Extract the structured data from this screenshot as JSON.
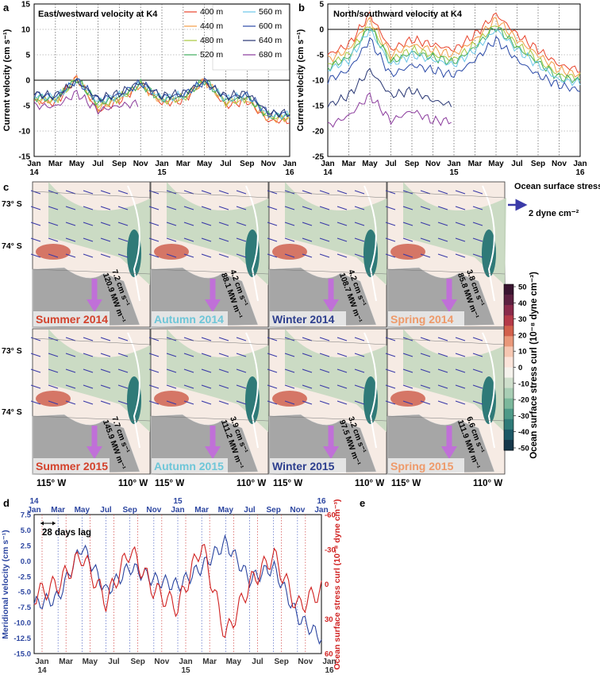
{
  "panels": {
    "a": {
      "letter": "a",
      "title": "East/westward velocity at K4",
      "ylabel": "Current velocity (cm s⁻¹)",
      "ylim": [
        -15,
        15
      ],
      "yticks": [
        "-15",
        "-10",
        "-5",
        "0",
        "5",
        "10",
        "15"
      ],
      "xticks": [
        "Jan",
        "Mar",
        "May",
        "Jul",
        "Sep",
        "Nov",
        "Jan",
        "Mar",
        "May",
        "Jul",
        "Sep",
        "Nov",
        "Jan"
      ],
      "years": [
        "14",
        "15",
        "16"
      ]
    },
    "b": {
      "letter": "b",
      "title": "North/southward velocity at K4",
      "ylabel": "Current velocity (cm s⁻¹)",
      "ylim": [
        -25,
        5
      ],
      "yticks": [
        "-25",
        "-20",
        "-15",
        "-10",
        "-5",
        "0",
        "5"
      ],
      "xticks": [
        "Jan",
        "Mar",
        "May",
        "Jul",
        "Sep",
        "Nov",
        "Jan",
        "Mar",
        "May",
        "Jul",
        "Sep",
        "Nov",
        "Jan"
      ],
      "years": [
        "14",
        "15",
        "16"
      ]
    },
    "c": {
      "letter": "c",
      "legend_title": "Ocean surface stress",
      "legend_scale": "2  dyne cm⁻²",
      "lat_labels": [
        "73° S",
        "74° S"
      ],
      "lon_labels": [
        "115° W",
        "110° W"
      ],
      "colorbar_label": "Ocean surface stress curl (10⁻⁸ dyne cm⁻³)",
      "colorbar_ticks": [
        "50",
        "40",
        "30",
        "20",
        "10",
        "0",
        "-10",
        "-20",
        "-30",
        "-40",
        "-50"
      ],
      "colorbar_colors": [
        "#3a1530",
        "#5c2040",
        "#8a2a4a",
        "#b53a48",
        "#d2604c",
        "#e9987a",
        "#f6c7b2",
        "#fbe4da",
        "#f5f2ec",
        "#cfdfcc",
        "#a9ceb5",
        "#7cb89c",
        "#4e9a88",
        "#2f7a78",
        "#1d5866",
        "#16374a"
      ],
      "maps": [
        {
          "season": "Summer 2014",
          "speed": "7.2 cm s⁻¹",
          "power": "120.9 MW m⁻¹",
          "color": "#d3412b"
        },
        {
          "season": "Autumn 2014",
          "speed": "4.2 cm s⁻¹",
          "power": "88.1 MW m⁻¹",
          "color": "#6ec6d8"
        },
        {
          "season": "Winter 2014",
          "speed": "4.2 cm s⁻¹",
          "power": "108.7 MW m⁻¹",
          "color": "#2d3f8e"
        },
        {
          "season": "Spring 2014",
          "speed": "3.8 cm s⁻¹",
          "power": "85.8 MW m⁻¹",
          "color": "#ee9a6a"
        },
        {
          "season": "Summer 2015",
          "speed": "7.7 cm s⁻¹",
          "power": "145.9 MW m⁻¹",
          "color": "#d3412b"
        },
        {
          "season": "Autumn 2015",
          "speed": "3.9 cm s⁻¹",
          "power": "111.2 MW m⁻¹",
          "color": "#6ec6d8"
        },
        {
          "season": "Winter 2015",
          "speed": "3.2 cm s⁻¹",
          "power": "97.5 MW m⁻¹",
          "color": "#2d3f8e"
        },
        {
          "season": "Spring 2015",
          "speed": "6.6 cm s⁻¹",
          "power": "111.9 MW m⁻¹",
          "color": "#ee9a6a"
        }
      ]
    },
    "d": {
      "letter": "d",
      "annotation": "28 days lag",
      "ylabel_left": "Meridional velocity (cm s⁻¹)",
      "ylabel_right": "Ocean surface stress curl (10⁻⁸ dyne cm⁻³)",
      "left_yticks": [
        "7.5",
        "5.0",
        "2.5",
        "0.0",
        "-2.5",
        "-5.0",
        "-7.5",
        "-10.0",
        "-12.5",
        "-15.0"
      ],
      "right_yticks": [
        "-60",
        "-30",
        "0",
        "30",
        "60"
      ],
      "xticks": [
        "Jan",
        "Mar",
        "May",
        "Jul",
        "Sep",
        "Nov",
        "Jan",
        "Mar",
        "May",
        "Jul",
        "Sep",
        "Nov",
        "Jan"
      ],
      "years": [
        "14",
        "15",
        "16"
      ],
      "left_color": "#2b45a0",
      "right_color": "#d0201f"
    },
    "e": {
      "letter": "e"
    }
  },
  "chart_data": [
    {
      "type": "line",
      "title": "East/westward velocity at K4",
      "ylabel": "Current velocity (cm s⁻¹)",
      "ylim": [
        -15,
        15
      ],
      "x_range": [
        "2014-01",
        "2016-01"
      ],
      "x": [
        "Jan 14",
        "Mar 14",
        "May 14",
        "Jul 14",
        "Sep 14",
        "Nov 14",
        "Jan 15",
        "Mar 15",
        "May 15",
        "Jul 15",
        "Sep 15",
        "Nov 15",
        "Jan 16"
      ],
      "grid": true,
      "legend": "top-right",
      "series": [
        {
          "name": "400 m",
          "color": "#e8442c",
          "values": [
            -4,
            -4.5,
            0.5,
            -6,
            -4,
            -1,
            -4.5,
            -4,
            0,
            -5,
            -4,
            -8,
            -8
          ]
        },
        {
          "name": "440 m",
          "color": "#f39c46",
          "values": [
            -3.8,
            -4.2,
            0.4,
            -5.5,
            -3.8,
            -0.9,
            -4.2,
            -3.8,
            0,
            -4.6,
            -3.8,
            -7.5,
            -7.6
          ]
        },
        {
          "name": "480 m",
          "color": "#a8c83c",
          "values": [
            -3.5,
            -4,
            0.3,
            -5,
            -3.5,
            -0.8,
            -4,
            -3.5,
            0,
            -4.3,
            -3.5,
            -7.2,
            -7.3
          ]
        },
        {
          "name": "520 m",
          "color": "#3fae5c",
          "values": [
            -3.3,
            -3.8,
            0.2,
            -4.6,
            -3.3,
            -0.7,
            -3.8,
            -3.3,
            0,
            -4,
            -3.3,
            -7,
            -7.1
          ]
        },
        {
          "name": "560 m",
          "color": "#6cc6e8",
          "values": [
            -3,
            -3.5,
            0.1,
            -4.2,
            -3,
            -0.6,
            -3.5,
            -3,
            -0.1,
            -3.7,
            -3,
            -6.8,
            -6.9
          ]
        },
        {
          "name": "600 m",
          "color": "#2b4aa8",
          "values": [
            -2.8,
            -3.3,
            0,
            -3.9,
            -2.8,
            -0.5,
            -3.3,
            -2.8,
            -0.2,
            -3.4,
            -2.8,
            -6.6,
            -6.7
          ]
        },
        {
          "name": "640 m",
          "color": "#283673",
          "values": [
            -2.6,
            -3.1,
            -0.1,
            -3.6,
            -2.6,
            -0.4,
            -3.1,
            -2.6,
            -0.3,
            -3.2,
            -2.6,
            -6.4,
            -6.5
          ]
        },
        {
          "name": "680 m",
          "color": "#8a3a9c",
          "values": [
            -5,
            -5.2,
            -2.5,
            -6,
            -5,
            -4.5,
            null,
            null,
            null,
            null,
            null,
            null,
            null
          ]
        }
      ]
    },
    {
      "type": "line",
      "title": "North/southward velocity at K4",
      "ylabel": "Current velocity (cm s⁻¹)",
      "ylim": [
        -25,
        5
      ],
      "x_range": [
        "2014-01",
        "2016-01"
      ],
      "x": [
        "Jan 14",
        "Mar 14",
        "May 14",
        "Jul 14",
        "Sep 14",
        "Nov 14",
        "Jan 15",
        "Mar 15",
        "May 15",
        "Jul 15",
        "Sep 15",
        "Nov 15",
        "Jan 16"
      ],
      "grid": true,
      "series": [
        {
          "name": "400 m",
          "color": "#e8442c",
          "values": [
            -5,
            -3,
            3,
            -4,
            -2,
            -3,
            -4,
            -1,
            3,
            -1,
            -4,
            -7,
            -8
          ]
        },
        {
          "name": "440 m",
          "color": "#f39c46",
          "values": [
            -6,
            -4,
            2,
            -5,
            -3,
            -4,
            -5,
            -2,
            2,
            -2,
            -5,
            -8,
            -9
          ]
        },
        {
          "name": "480 m",
          "color": "#a8c83c",
          "values": [
            -7,
            -5,
            1,
            -6,
            -4,
            -5,
            -6,
            -3,
            1,
            -3,
            -6,
            -9,
            -9.5
          ]
        },
        {
          "name": "520 m",
          "color": "#3fae5c",
          "values": [
            -7.5,
            -5.5,
            0.5,
            -6.5,
            -4.5,
            -5.5,
            -6.5,
            -3.5,
            0.5,
            -3.5,
            -6.5,
            -9.5,
            -10
          ]
        },
        {
          "name": "560 m",
          "color": "#6cc6e8",
          "values": [
            -8,
            -6,
            0,
            -7,
            -5,
            -6,
            -7,
            -4,
            0,
            -4,
            -7,
            -10,
            -10.5
          ]
        },
        {
          "name": "600 m",
          "color": "#2b4aa8",
          "values": [
            -10,
            -8,
            -2,
            -9,
            -7,
            -8,
            -9,
            -6,
            -2,
            -6,
            -9,
            -11,
            -12
          ]
        },
        {
          "name": "640 m",
          "color": "#283673",
          "values": [
            -15,
            -13,
            -8,
            -13,
            -12,
            -14,
            -15,
            null,
            null,
            null,
            null,
            null,
            null
          ]
        },
        {
          "name": "680 m",
          "color": "#8a3a9c",
          "values": [
            -19,
            -17,
            -13,
            -18,
            -16,
            -18,
            -18,
            null,
            null,
            null,
            null,
            null,
            null
          ]
        }
      ]
    },
    {
      "type": "line",
      "ylabel": "Meridional velocity (cm s⁻¹)",
      "ylabel_right": "Ocean surface stress curl (10⁻⁸ dyne cm⁻³)",
      "ylim": [
        -15,
        7.5
      ],
      "ylim_right": [
        60,
        -60
      ],
      "x": [
        "Jan 14",
        "Mar 14",
        "May 14",
        "Jul 14",
        "Sep 14",
        "Nov 14",
        "Jan 15",
        "Mar 15",
        "May 15",
        "Jul 15",
        "Sep 15",
        "Nov 15",
        "Jan 16"
      ],
      "series": [
        {
          "name": "",
          "axis": "left",
          "color": "#2b45a0",
          "values": [
            -7,
            -6,
            2.5,
            -5,
            -1,
            -3,
            -4,
            -1,
            3,
            -3,
            -1,
            -9,
            -12.5
          ]
        },
        {
          "name": "",
          "axis": "right",
          "color": "#d0201f",
          "values": [
            10,
            0,
            -25,
            15,
            -30,
            5,
            20,
            -35,
            45,
            0,
            -25,
            20,
            5
          ]
        }
      ]
    }
  ]
}
